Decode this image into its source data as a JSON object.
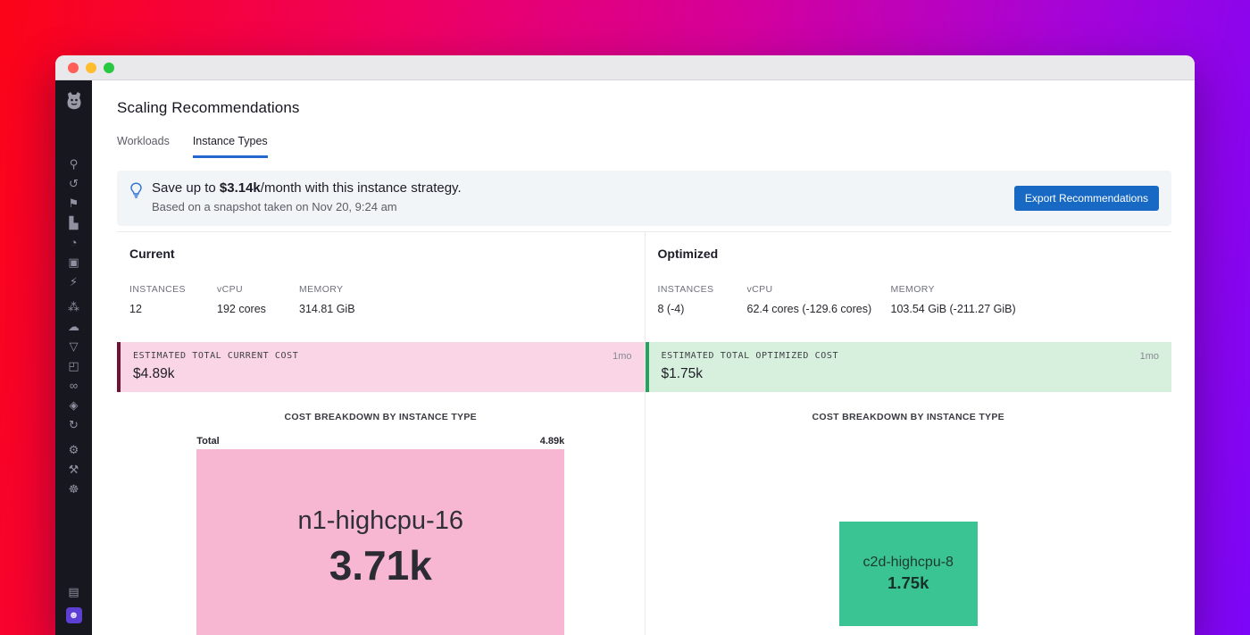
{
  "header": {
    "title": "Scaling Recommendations"
  },
  "tabs": [
    {
      "label": "Workloads",
      "active": false
    },
    {
      "label": "Instance Types",
      "active": true
    }
  ],
  "banner": {
    "message_prefix": "Save up to ",
    "savings": "$3.14k",
    "message_suffix": "/month with this instance strategy.",
    "snapshot": "Based on a snapshot taken on Nov 20, 9:24 am",
    "export_label": "Export Recommendations"
  },
  "current": {
    "title": "Current",
    "stats": [
      {
        "label": "INSTANCES",
        "value": "12"
      },
      {
        "label": "vCPU",
        "value": "192 cores"
      },
      {
        "label": "MEMORY",
        "value": "314.81 GiB"
      }
    ],
    "cost": {
      "label": "ESTIMATED TOTAL CURRENT COST",
      "value": "$4.89k",
      "period": "1mo"
    },
    "chart_title": "COST BREAKDOWN BY INSTANCE TYPE",
    "treemap": {
      "total_label": "Total",
      "total_value": "4.89k",
      "node_name": "n1-highcpu-16",
      "node_value": "3.71k"
    }
  },
  "optimized": {
    "title": "Optimized",
    "stats": [
      {
        "label": "INSTANCES",
        "value": "8 (-4)"
      },
      {
        "label": "vCPU",
        "value": "62.4 cores (-129.6 cores)"
      },
      {
        "label": "MEMORY",
        "value": "103.54 GiB (-211.27 GiB)"
      }
    ],
    "cost": {
      "label": "ESTIMATED TOTAL OPTIMIZED COST",
      "value": "$1.75k",
      "period": "1mo"
    },
    "chart_title": "COST BREAKDOWN BY INSTANCE TYPE",
    "treemap": {
      "node_name": "c2d-highcpu-8",
      "node_value": "1.75k"
    }
  },
  "chart_data": [
    {
      "type": "treemap",
      "context": "Current",
      "title": "COST BREAKDOWN BY INSTANCE TYPE",
      "total": 4.89,
      "unit": "k$/1mo",
      "nodes": [
        {
          "name": "n1-highcpu-16",
          "value": 3.71
        }
      ]
    },
    {
      "type": "treemap",
      "context": "Optimized",
      "title": "COST BREAKDOWN BY INSTANCE TYPE",
      "total": 1.75,
      "unit": "k$/1mo",
      "nodes": [
        {
          "name": "c2d-highcpu-8",
          "value": 1.75
        }
      ]
    }
  ],
  "colors": {
    "accent_blue": "#2467cf",
    "export_button": "#1769c4",
    "current_cost_bg": "#f9d5e6",
    "current_cost_border": "#6d1436",
    "optimized_cost_bg": "#d7efdd",
    "optimized_cost_border": "#27a35f",
    "current_treemap": "#f7b7d3",
    "optimized_treemap": "#3ac493",
    "sidebar_bg": "#17171f"
  },
  "sidebar": {
    "icon_groups": [
      [
        {
          "name": "search-icon",
          "glyph": "⚲"
        },
        {
          "name": "history-icon",
          "glyph": "↺"
        },
        {
          "name": "pin-icon",
          "glyph": "⚑"
        },
        {
          "name": "bar-chart-icon",
          "glyph": "▙"
        },
        {
          "name": "gauge-icon",
          "glyph": "◔"
        },
        {
          "name": "layers-icon",
          "glyph": "▣"
        },
        {
          "name": "bolt-icon",
          "glyph": "⚡"
        }
      ],
      [
        {
          "name": "cluster-icon",
          "glyph": "⁂"
        },
        {
          "name": "cloud-icon",
          "glyph": "☁"
        },
        {
          "name": "filter-icon",
          "glyph": "▽"
        },
        {
          "name": "windows-icon",
          "glyph": "◰"
        },
        {
          "name": "link-icon",
          "glyph": "∞"
        },
        {
          "name": "shield-icon",
          "glyph": "◈"
        },
        {
          "name": "sync-icon",
          "glyph": "↻"
        }
      ],
      [
        {
          "name": "gear-icon",
          "glyph": "⚙"
        },
        {
          "name": "tools-icon",
          "glyph": "⚒"
        },
        {
          "name": "bot-icon",
          "glyph": "☸"
        }
      ]
    ],
    "bottom_icons": [
      {
        "name": "server-icon",
        "glyph": "▤"
      },
      {
        "name": "avatar-icon",
        "glyph": "☻",
        "cls": "avatar"
      },
      {
        "name": "user-icon",
        "glyph": "☺"
      }
    ]
  }
}
